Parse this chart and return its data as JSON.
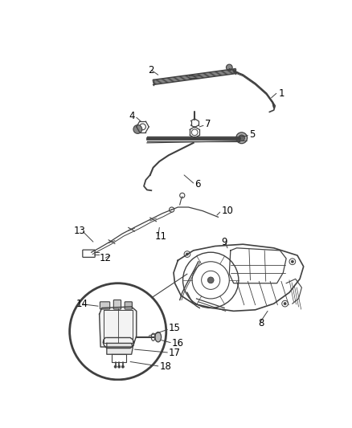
{
  "background_color": "#ffffff",
  "line_color": "#404040",
  "label_fontsize": 8.5,
  "figsize": [
    4.38,
    5.33
  ],
  "dpi": 100
}
